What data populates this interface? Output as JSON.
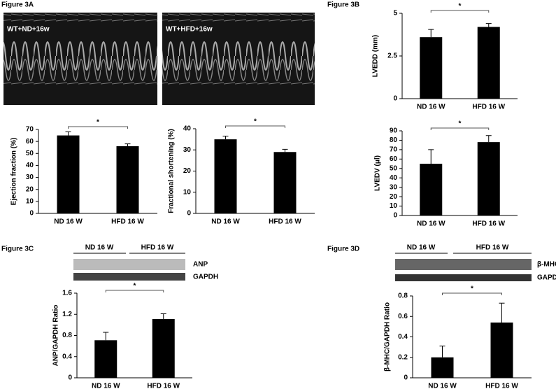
{
  "chart_data": [
    {
      "type": "bar",
      "ylabel": "Ejection fraction (%)",
      "categories": [
        "ND 16 W",
        "HFD 16 W"
      ],
      "values": [
        65,
        56
      ],
      "errors": [
        3,
        2
      ],
      "ylim": [
        0,
        70
      ],
      "yticks": [
        0,
        10,
        20,
        30,
        40,
        50,
        60,
        70
      ],
      "color": "#000000",
      "annotation": "*"
    },
    {
      "type": "bar",
      "ylabel": "Fractional shortening (%)",
      "categories": [
        "ND 16 W",
        "HFD 16 W"
      ],
      "values": [
        35,
        29
      ],
      "errors": [
        1.5,
        1.3
      ],
      "ylim": [
        0,
        40
      ],
      "yticks": [
        0,
        10,
        20,
        30,
        40
      ],
      "color": "#000000",
      "annotation": "*"
    },
    {
      "type": "bar",
      "ylabel": "LVEDD (mm)",
      "categories": [
        "ND 16 W",
        "HFD 16 W"
      ],
      "values": [
        3.6,
        4.2
      ],
      "errors": [
        0.45,
        0.2
      ],
      "ylim": [
        0,
        5
      ],
      "yticks": [
        0,
        2.5,
        5
      ],
      "color": "#000000",
      "annotation": "*"
    },
    {
      "type": "bar",
      "ylabel": "LVEDV (μl)",
      "categories": [
        "ND 16 W",
        "HFD 16 W"
      ],
      "values": [
        55,
        78
      ],
      "errors": [
        15,
        7
      ],
      "ylim": [
        0,
        90
      ],
      "yticks": [
        0,
        10,
        20,
        30,
        40,
        50,
        60,
        70,
        80,
        90
      ],
      "color": "#000000",
      "annotation": "*"
    },
    {
      "type": "bar",
      "ylabel": "ANP/GAPDH Ratio",
      "categories": [
        "ND 16 W",
        "HFD 16 W"
      ],
      "values": [
        0.71,
        1.11
      ],
      "errors": [
        0.15,
        0.1
      ],
      "ylim": [
        0,
        1.6
      ],
      "yticks": [
        0,
        0.4,
        0.8,
        1.2,
        1.6
      ],
      "color": "#000000",
      "annotation": "*"
    },
    {
      "type": "bar",
      "ylabel": "β-MHC/GAPDH Ratio",
      "categories": [
        "ND 16 W",
        "HFD 16 W"
      ],
      "values": [
        0.2,
        0.54
      ],
      "errors": [
        0.11,
        0.19
      ],
      "ylim": [
        0,
        0.8
      ],
      "yticks": [
        0,
        0.2,
        0.4,
        0.6,
        0.8
      ],
      "color": "#000000",
      "annotation": "*"
    }
  ],
  "figure_labels": [
    "Figure 3A",
    "Figure 3B",
    "Figure 3C",
    "Figure 3D"
  ],
  "echo_labels": [
    "WT+ND+16w",
    "WT+HFD+16w"
  ],
  "blots": [
    {
      "groups": [
        "ND 16 W",
        "HFD 16 W"
      ],
      "bands": [
        "ANP",
        "GAPDH"
      ]
    },
    {
      "groups": [
        "ND 16 W",
        "HFD 16 W"
      ],
      "bands": [
        "β-MHC",
        "GAPDH"
      ]
    }
  ]
}
